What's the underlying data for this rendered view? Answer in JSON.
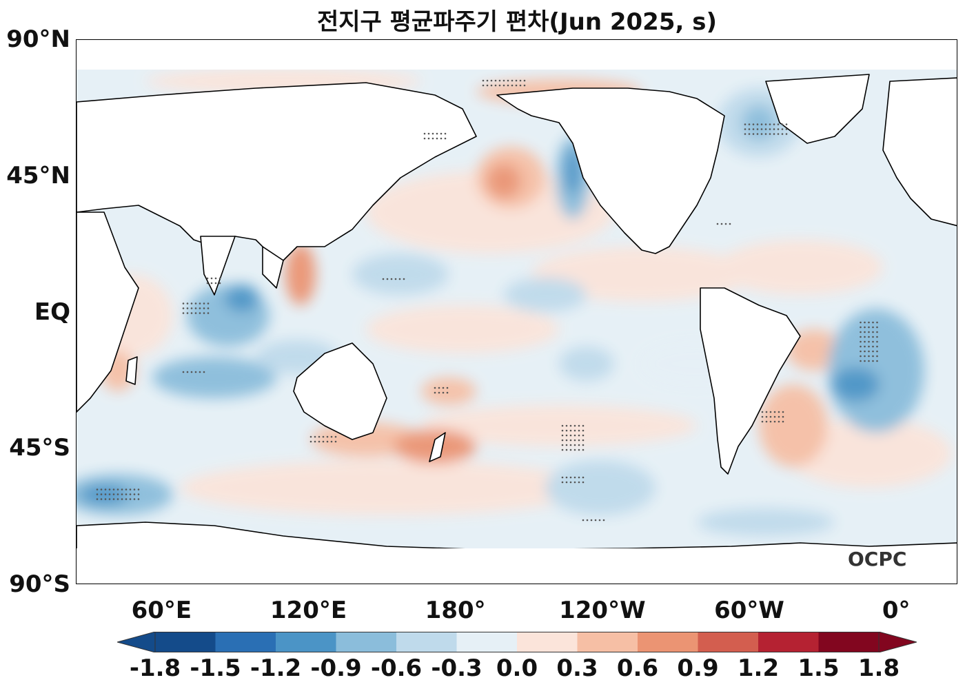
{
  "title": "전지구 평균파주기 편차(Jun 2025, s)",
  "logo_text": "OCPC",
  "y_axis": {
    "labels": [
      "90°N",
      "45°N",
      "EQ",
      "45°S",
      "90°S"
    ],
    "lats": [
      90,
      45,
      0,
      -45,
      -90
    ]
  },
  "x_axis": {
    "labels": [
      "60°E",
      "120°E",
      "180°",
      "120°W",
      "60°W",
      "0°"
    ],
    "lons": [
      60,
      120,
      180,
      240,
      300,
      360
    ]
  },
  "map_extent": {
    "lon_min": 25,
    "lon_max": 385,
    "lat_min": -90,
    "lat_max": 90
  },
  "colorbar": {
    "ticks": [
      "-1.8",
      "-1.5",
      "-1.2",
      "-0.9",
      "-0.6",
      "-0.3",
      "0.0",
      "0.3",
      "0.6",
      "0.9",
      "1.2",
      "1.5",
      "1.8"
    ],
    "colors": [
      "#144b8a",
      "#2a6fb4",
      "#4b94c6",
      "#8bbddb",
      "#bfdaeb",
      "#e6f0f6",
      "#fbe4da",
      "#f6bfa5",
      "#eb9473",
      "#d35e4f",
      "#b52232",
      "#82061f"
    ],
    "extend": "both"
  },
  "colors": {
    "land": "#ffffff",
    "coast": "#000000",
    "stipple": "#555555"
  }
}
